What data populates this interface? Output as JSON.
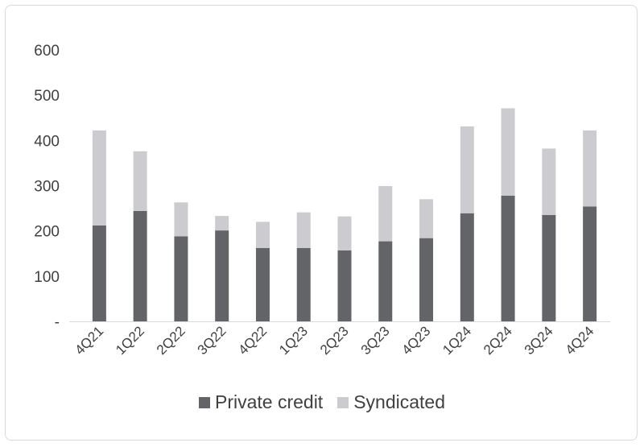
{
  "chart_data": {
    "type": "bar",
    "stacked": true,
    "categories": [
      "4Q21",
      "1Q22",
      "2Q22",
      "3Q22",
      "4Q22",
      "1Q23",
      "2Q23",
      "3Q23",
      "4Q23",
      "1Q24",
      "2Q24",
      "3Q24",
      "4Q24"
    ],
    "series": [
      {
        "name": "Private credit",
        "color": "#636467",
        "values": [
          212,
          244,
          188,
          201,
          162,
          162,
          157,
          177,
          184,
          239,
          278,
          235,
          254
        ]
      },
      {
        "name": "Syndicated",
        "color": "#cbcbd0",
        "values": [
          210,
          132,
          75,
          32,
          58,
          79,
          75,
          122,
          86,
          192,
          193,
          147,
          168
        ]
      }
    ],
    "ylim": [
      0,
      600
    ],
    "yticks": [
      0,
      100,
      200,
      300,
      400,
      500,
      600
    ],
    "ytick_labels": [
      "-",
      "100",
      "200",
      "300",
      "400",
      "500",
      "600"
    ],
    "grid": false,
    "legend": "bottom"
  }
}
